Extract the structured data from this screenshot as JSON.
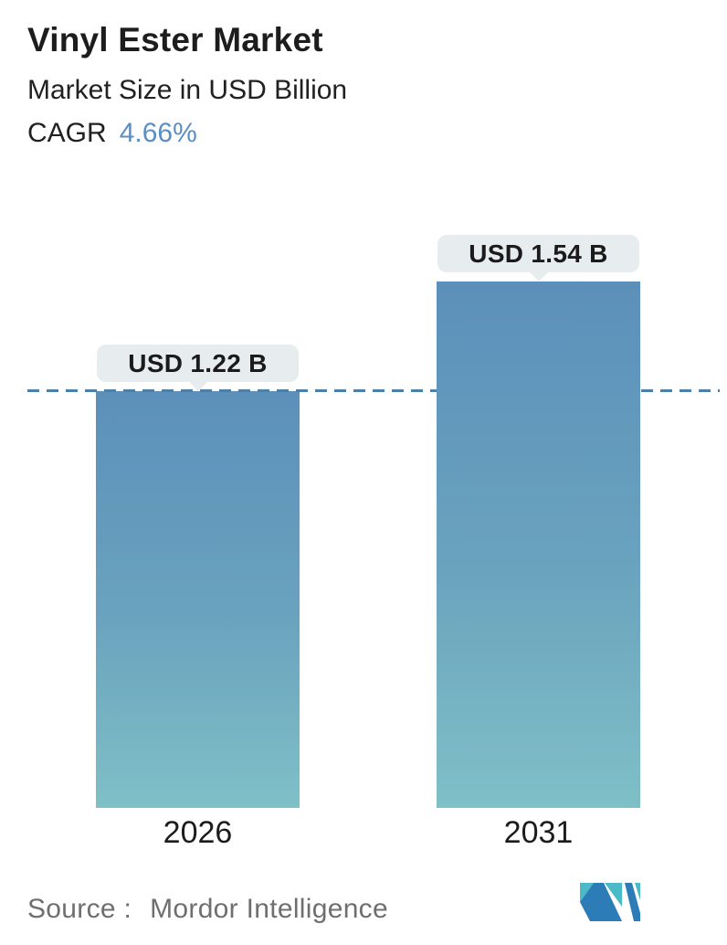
{
  "header": {
    "title": "Vinyl Ester Market",
    "subtitle": "Market Size in USD Billion",
    "cagr_label": "CAGR",
    "cagr_value": "4.66%"
  },
  "chart_data": {
    "type": "bar",
    "title": "Vinyl Ester Market",
    "subtitle": "Market Size in USD Billion",
    "cagr": "4.66%",
    "unit": "USD Billion",
    "categories": [
      "2026",
      "2031"
    ],
    "values": [
      1.22,
      1.54
    ],
    "bar_labels": [
      "USD 1.22 B",
      "USD 1.54 B"
    ],
    "ylim": [
      0,
      1.6
    ],
    "grid": false,
    "legend": "none",
    "reference_line": {
      "value": 1.22,
      "style": "dashed",
      "color": "#4b80a9"
    },
    "bar_gradient_top": "#5c90ba",
    "bar_gradient_bottom": "#7fc0c7",
    "label_bubble_bg": "#e7edef"
  },
  "footer": {
    "source_label": "Source :",
    "source_value": "Mordor Intelligence"
  },
  "logo": {
    "name": "mordor-intelligence-logo",
    "teal": "#4bbac7",
    "blue": "#2c7cb7"
  },
  "colors": {
    "accent_blue": "#5b8ec2",
    "text_dark": "#1d1d1d",
    "text_gray": "#6f6f6f"
  }
}
